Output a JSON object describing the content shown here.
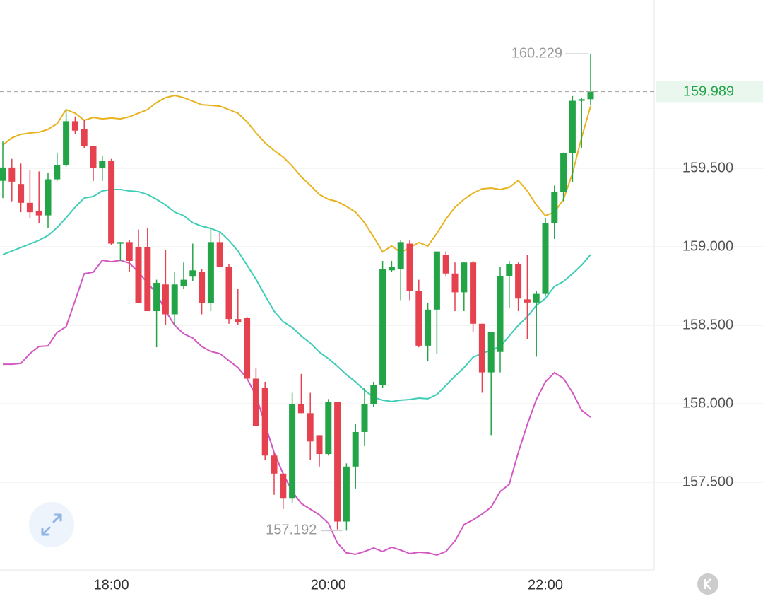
{
  "chart_data": {
    "type": "candlestick",
    "categories": [
      null,
      null,
      null,
      null,
      null,
      null,
      null,
      null,
      null,
      null,
      null,
      null,
      "18:00",
      null,
      null,
      null,
      null,
      null,
      null,
      null,
      null,
      null,
      null,
      null,
      null,
      null,
      null,
      null,
      null,
      null,
      null,
      null,
      null,
      null,
      null,
      null,
      "20:00",
      null,
      null,
      null,
      null,
      null,
      null,
      null,
      null,
      null,
      null,
      null,
      null,
      null,
      null,
      null,
      null,
      null,
      null,
      null,
      null,
      null,
      null,
      null,
      "22:00",
      null,
      null,
      null,
      null,
      null
    ],
    "open": [
      159.42,
      159.505,
      159.4,
      159.28,
      159.23,
      159.2,
      159.43,
      159.52,
      159.8,
      159.75,
      159.64,
      159.5,
      159.545,
      159.02,
      159.03,
      159.0,
      159.0,
      158.59,
      158.76,
      158.57,
      158.75,
      158.81,
      158.84,
      158.64,
      159.03,
      158.87,
      158.54,
      158.545,
      158.16,
      158.1,
      157.67,
      157.555,
      157.4,
      158.0,
      157.94,
      157.8,
      157.68,
      158.01,
      157.25,
      157.6,
      157.82,
      158.0,
      158.12,
      158.85,
      158.86,
      159.02,
      158.72,
      158.37,
      158.6,
      158.95,
      158.83,
      158.71,
      158.9,
      158.51,
      158.2,
      158.33,
      158.815,
      158.89,
      158.665,
      158.645,
      158.7,
      159.15,
      159.35,
      159.595,
      159.93,
      159.94
    ],
    "high": [
      159.67,
      159.56,
      159.53,
      159.49,
      159.48,
      159.47,
      159.6,
      159.87,
      159.83,
      159.81,
      159.64,
      159.58,
      159.56,
      159.03,
      159.04,
      159.11,
      159.12,
      158.79,
      158.98,
      158.84,
      158.9,
      159.02,
      158.86,
      159.12,
      159.09,
      158.89,
      158.73,
      158.55,
      158.23,
      158.14,
      157.69,
      157.555,
      158.07,
      158.19,
      158.07,
      157.8,
      158.03,
      158.01,
      157.62,
      157.87,
      158.1,
      158.14,
      158.91,
      158.91,
      159.04,
      159.04,
      158.79,
      158.64,
      158.97,
      158.97,
      158.9,
      158.9,
      158.91,
      158.51,
      158.455,
      158.87,
      158.91,
      158.9,
      158.95,
      158.72,
      159.18,
      159.39,
      159.6,
      159.96,
      159.95,
      160.229
    ],
    "low": [
      159.31,
      159.29,
      159.22,
      159.18,
      159.15,
      159.12,
      159.42,
      159.51,
      159.72,
      159.63,
      159.42,
      159.42,
      159.01,
      158.91,
      158.84,
      158.64,
      158.59,
      158.36,
      158.5,
      158.5,
      158.73,
      158.78,
      158.57,
      158.59,
      158.87,
      158.51,
      158.5,
      158.16,
      157.86,
      157.64,
      157.42,
      157.33,
      157.37,
      157.94,
      157.64,
      157.6,
      157.67,
      157.2,
      157.192,
      157.46,
      157.73,
      157.98,
      158.1,
      158.84,
      158.66,
      158.66,
      158.36,
      158.27,
      158.32,
      158.81,
      158.59,
      158.59,
      158.46,
      158.07,
      157.8,
      158.2,
      158.61,
      158.59,
      158.41,
      158.3,
      158.69,
      159.05,
      159.29,
      159.41,
      159.63,
      159.905
    ],
    "close": [
      159.505,
      159.415,
      159.28,
      159.22,
      159.2,
      159.43,
      159.52,
      159.8,
      159.74,
      159.64,
      159.5,
      159.545,
      159.02,
      159.03,
      158.91,
      158.64,
      158.59,
      158.77,
      158.57,
      158.76,
      158.79,
      158.85,
      158.64,
      159.03,
      158.87,
      158.54,
      158.52,
      158.16,
      157.86,
      157.67,
      157.555,
      157.4,
      158.0,
      157.94,
      157.76,
      157.68,
      158.01,
      157.25,
      157.6,
      157.82,
      158.0,
      158.12,
      158.86,
      158.87,
      159.03,
      158.72,
      158.37,
      158.6,
      158.97,
      158.83,
      158.71,
      158.9,
      158.51,
      158.2,
      158.455,
      158.815,
      158.89,
      158.67,
      158.645,
      158.7,
      159.15,
      159.35,
      159.595,
      159.93,
      159.94,
      159.989
    ],
    "up_color": "#22a447",
    "down_color": "#e5414f",
    "upper": {
      "color": "#e8b320",
      "values": [
        159.649,
        159.694,
        159.716,
        159.725,
        159.73,
        159.748,
        159.784,
        159.874,
        159.851,
        159.806,
        159.824,
        159.815,
        159.82,
        159.815,
        159.829,
        159.851,
        159.874,
        159.919,
        159.95,
        159.964,
        159.95,
        159.928,
        159.905,
        159.901,
        159.896,
        159.874,
        159.851,
        159.797,
        159.725,
        159.662,
        159.613,
        159.572,
        159.514,
        159.446,
        159.392,
        159.333,
        159.302,
        159.288,
        159.257,
        159.221,
        159.153,
        159.063,
        158.968,
        159.005,
        158.964,
        158.995,
        159.027,
        159.005,
        159.086,
        159.176,
        159.252,
        159.302,
        159.342,
        159.369,
        159.374,
        159.365,
        159.378,
        159.423,
        159.356,
        159.266,
        159.198,
        159.221,
        159.302,
        159.468,
        159.694,
        159.896
      ]
    },
    "middle": {
      "color": "#3fcdb7",
      "values": [
        158.95,
        158.973,
        158.995,
        159.018,
        159.041,
        159.072,
        159.122,
        159.185,
        159.252,
        159.311,
        159.32,
        159.356,
        159.365,
        159.365,
        159.356,
        159.351,
        159.333,
        159.302,
        159.266,
        159.221,
        159.198,
        159.153,
        159.131,
        159.117,
        159.095,
        159.041,
        158.973,
        158.883,
        158.793,
        158.689,
        158.59,
        158.523,
        158.486,
        158.432,
        158.387,
        158.329,
        158.288,
        158.239,
        158.185,
        158.14,
        158.086,
        158.041,
        158.023,
        158.014,
        158.023,
        158.027,
        158.036,
        158.032,
        158.059,
        158.117,
        158.176,
        158.23,
        158.297,
        158.32,
        158.342,
        158.365,
        158.432,
        158.5,
        158.554,
        158.626,
        158.671,
        158.748,
        158.779,
        158.829,
        158.883,
        158.95
      ]
    },
    "lower": {
      "color": "#d257c2",
      "values": [
        158.252,
        158.252,
        158.257,
        158.32,
        158.365,
        158.369,
        158.455,
        158.491,
        158.658,
        158.829,
        158.838,
        158.914,
        158.905,
        158.914,
        158.896,
        158.838,
        158.77,
        158.703,
        158.59,
        158.5,
        158.446,
        158.419,
        158.365,
        158.333,
        158.32,
        158.275,
        158.23,
        158.162,
        158.05,
        157.869,
        157.689,
        157.554,
        157.441,
        157.365,
        157.329,
        157.293,
        157.239,
        157.113,
        157.05,
        157.041,
        157.059,
        157.081,
        157.059,
        157.086,
        157.068,
        157.045,
        157.054,
        157.05,
        157.036,
        157.059,
        157.126,
        157.23,
        157.261,
        157.297,
        157.342,
        157.441,
        157.486,
        157.689,
        157.869,
        158.027,
        158.14,
        158.198,
        158.162,
        158.072,
        157.959,
        157.914
      ]
    },
    "ylim": [
      156.946,
      160.572
    ],
    "yticks": [
      {
        "value": 157.5,
        "label": "157.500"
      },
      {
        "value": 158,
        "label": "158.000"
      },
      {
        "value": 158.5,
        "label": "158.500"
      },
      {
        "value": 159,
        "label": "159.000"
      },
      {
        "value": 159.5,
        "label": "159.500"
      }
    ],
    "grid": true
  }
}
